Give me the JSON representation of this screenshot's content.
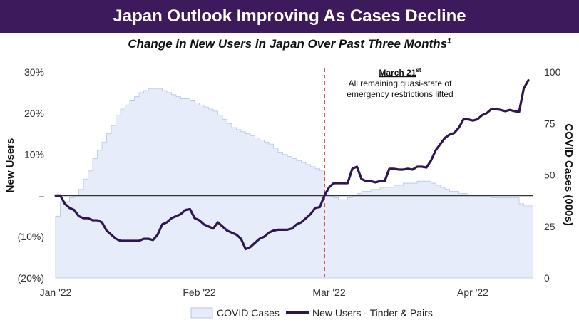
{
  "colors": {
    "banner": "#3c1a5b",
    "line": "#2e1650",
    "area_fill": "#e6ecf9",
    "area_stroke": "#b7c4e4",
    "annotation": "#e0242a",
    "zero_line": "#333333"
  },
  "header": {
    "title": "Japan Outlook Improving As Cases Decline"
  },
  "subtitle": {
    "text": "Change in New Users in Japan Over Past Three Months",
    "footnote": "1"
  },
  "annotation": {
    "date": "March 21",
    "date_suffix": "st",
    "line1": "All remaining quasi-state of",
    "line2": "emergency restrictions lifted"
  },
  "chart_data": {
    "type": "line+area",
    "x_ticks": [
      "Jan '22",
      "Feb '22",
      "Mar '22",
      "Apr '22"
    ],
    "y_left": {
      "label": "New Users",
      "ticks": [
        "30%",
        "20%",
        "10%",
        "–",
        "(10%)",
        "(20%)"
      ],
      "range": [
        -20,
        30
      ]
    },
    "y_right": {
      "label": "COVID Cases (000s)",
      "ticks": [
        "100",
        "75",
        "50",
        "25",
        "0"
      ],
      "range": [
        0,
        100
      ]
    },
    "annotation_day": 58,
    "legend": {
      "area": "COVID Cases",
      "line": "New Users - Tinder & Pairs"
    },
    "series": [
      {
        "name": "New Users - Tinder & Pairs",
        "axis": "left",
        "day_step": 1,
        "values": [
          0,
          0,
          -2,
          -3,
          -3.5,
          -5,
          -5.5,
          -5.5,
          -6,
          -6,
          -6.5,
          -8.5,
          -9.5,
          -10.5,
          -11,
          -11,
          -11,
          -11,
          -11,
          -10.5,
          -10.5,
          -10.8,
          -9.5,
          -7,
          -6.5,
          -5.5,
          -5,
          -4.5,
          -3.5,
          -3.3,
          -5.5,
          -6,
          -7,
          -7.5,
          -8,
          -6.5,
          -7.5,
          -8.5,
          -9,
          -9.5,
          -10.5,
          -13,
          -12.5,
          -11.5,
          -10.5,
          -10,
          -9,
          -8.5,
          -8.3,
          -8.3,
          -8.3,
          -8,
          -7,
          -6.5,
          -5.5,
          -4.5,
          -3,
          -2.8,
          0,
          2,
          3,
          3,
          3,
          3,
          6.5,
          7,
          4,
          3.5,
          3.5,
          3.2,
          3.5,
          3.5,
          6.5,
          6.5,
          6.3,
          6.3,
          6.5,
          6.3,
          7,
          7,
          6.8,
          8.5,
          11,
          12.5,
          14,
          14.8,
          15.2,
          16.5,
          18.5,
          18.5,
          18.2,
          18.5,
          19.5,
          20,
          21,
          21,
          20.8,
          20.5,
          20.8,
          20.5,
          20.3,
          26,
          28
        ]
      },
      {
        "name": "COVID Cases",
        "axis": "right",
        "day_step": 1,
        "values": [
          30,
          37,
          37,
          39,
          40,
          43,
          48,
          52,
          58,
          62,
          66,
          70,
          74,
          79,
          82,
          84,
          86,
          88,
          90,
          91,
          92,
          92,
          92,
          91,
          90,
          89,
          88,
          87,
          87,
          86,
          85,
          84,
          83,
          82,
          81,
          79,
          77,
          75,
          73,
          72,
          71,
          70,
          69,
          68,
          67,
          66,
          65,
          63,
          61,
          60,
          59,
          58,
          57,
          56,
          55,
          54,
          53,
          52,
          42,
          40,
          39,
          38,
          38,
          39,
          40,
          41,
          42,
          42,
          43,
          43,
          44,
          44,
          44,
          45,
          45,
          46,
          46,
          46,
          47,
          47,
          47,
          46,
          45,
          44,
          43,
          42,
          42,
          41,
          41,
          40,
          40,
          40,
          40,
          40,
          39,
          39,
          39,
          39,
          39,
          39,
          36,
          35,
          35
        ]
      }
    ]
  }
}
